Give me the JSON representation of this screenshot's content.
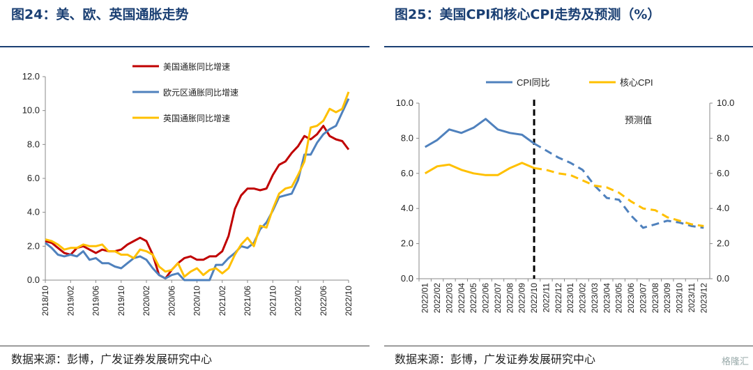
{
  "left": {
    "title": "图24：美、欧、英国通胀走势",
    "source": "数据来源：彭博，广发证券发展研究中心"
  },
  "right": {
    "title": "图25：美国CPI和核心CPI走势及预测（%）",
    "source": "数据来源：彭博，广发证券发展研究中心",
    "annotation": "预测值"
  },
  "watermark": "格隆汇",
  "colors": {
    "us": "#c00000",
    "eu": "#4f81bd",
    "uk": "#ffc000",
    "cpi": "#4f81bd",
    "core": "#ffc000",
    "title": "#1a3f73"
  },
  "chart_data": [
    {
      "type": "line",
      "title": "",
      "ylim": [
        0,
        12
      ],
      "yticks": [
        "0.0",
        "2.0",
        "4.0",
        "6.0",
        "8.0",
        "10.0",
        "12.0"
      ],
      "xticks": [
        "2018/10",
        "2019/02",
        "2019/06",
        "2019/10",
        "2020/02",
        "2020/06",
        "2020/10",
        "2021/02",
        "2021/06",
        "2021/10",
        "2022/02",
        "2022/06",
        "2022/10"
      ],
      "x": [
        "2018/10",
        "2018/11",
        "2018/12",
        "2019/01",
        "2019/02",
        "2019/03",
        "2019/04",
        "2019/05",
        "2019/06",
        "2019/07",
        "2019/08",
        "2019/09",
        "2019/10",
        "2019/11",
        "2019/12",
        "2020/01",
        "2020/02",
        "2020/03",
        "2020/04",
        "2020/05",
        "2020/06",
        "2020/07",
        "2020/08",
        "2020/09",
        "2020/10",
        "2020/11",
        "2020/12",
        "2021/01",
        "2021/02",
        "2021/03",
        "2021/04",
        "2021/05",
        "2021/06",
        "2021/07",
        "2021/08",
        "2021/09",
        "2021/10",
        "2021/11",
        "2021/12",
        "2022/01",
        "2022/02",
        "2022/03",
        "2022/04",
        "2022/05",
        "2022/06",
        "2022/07",
        "2022/08",
        "2022/09",
        "2022/10"
      ],
      "legend_position": "top-left",
      "series": [
        {
          "name": "美国通胀同比增速",
          "values": [
            2.3,
            2.2,
            1.9,
            1.6,
            1.5,
            1.9,
            2.0,
            1.8,
            1.6,
            1.8,
            1.7,
            1.7,
            1.8,
            2.1,
            2.3,
            2.5,
            2.3,
            1.5,
            0.3,
            0.1,
            0.6,
            1.0,
            1.3,
            1.4,
            1.2,
            1.2,
            1.4,
            1.4,
            1.7,
            2.6,
            4.2,
            5.0,
            5.4,
            5.4,
            5.3,
            5.4,
            6.2,
            6.8,
            7.0,
            7.5,
            7.9,
            8.5,
            8.3,
            8.6,
            9.1,
            8.5,
            8.3,
            8.2,
            7.7
          ]
        },
        {
          "name": "欧元区通胀同比增速",
          "values": [
            2.2,
            1.9,
            1.5,
            1.4,
            1.5,
            1.4,
            1.7,
            1.2,
            1.3,
            1.0,
            1.0,
            0.8,
            0.7,
            1.0,
            1.3,
            1.4,
            1.2,
            0.7,
            0.3,
            0.1,
            0.3,
            0.4,
            -0.2,
            -0.3,
            -0.3,
            -0.3,
            -0.3,
            0.9,
            0.9,
            1.3,
            1.6,
            2.0,
            1.9,
            2.2,
            3.0,
            3.4,
            4.1,
            4.9,
            5.0,
            5.1,
            5.9,
            7.4,
            7.4,
            8.1,
            8.6,
            8.9,
            9.1,
            9.9,
            10.7
          ]
        },
        {
          "name": "英国通胀同比增速",
          "values": [
            2.4,
            2.3,
            2.1,
            1.8,
            1.9,
            1.9,
            2.1,
            2.0,
            2.0,
            2.1,
            1.7,
            1.7,
            1.5,
            1.5,
            1.3,
            1.8,
            1.7,
            1.5,
            0.8,
            0.5,
            0.6,
            1.0,
            0.2,
            0.5,
            0.7,
            0.3,
            0.6,
            0.7,
            0.4,
            0.7,
            1.5,
            2.1,
            2.5,
            2.0,
            3.2,
            3.1,
            4.2,
            5.1,
            5.4,
            5.5,
            6.2,
            7.0,
            9.0,
            9.1,
            9.4,
            10.1,
            9.9,
            10.1,
            11.1
          ]
        }
      ]
    },
    {
      "type": "line",
      "title": "",
      "ylim": [
        0,
        10
      ],
      "yticks": [
        "0.0",
        "2.0",
        "4.0",
        "6.0",
        "8.0",
        "10.0"
      ],
      "x": [
        "2022/01",
        "2022/02",
        "2022/03",
        "2022/04",
        "2022/05",
        "2022/06",
        "2022/07",
        "2022/08",
        "2022/09",
        "2022/10",
        "2022/11",
        "2022/12",
        "2023/01",
        "2023/02",
        "2023/03",
        "2023/04",
        "2023/05",
        "2023/06",
        "2023/07",
        "2023/08",
        "2023/09",
        "2023/10",
        "2023/11",
        "2023/12"
      ],
      "forecast_start": "2022/11",
      "legend_position": "top",
      "series": [
        {
          "name": "CPI同比",
          "values": [
            7.5,
            7.9,
            8.5,
            8.3,
            8.6,
            9.1,
            8.5,
            8.3,
            8.2,
            7.7,
            7.3,
            6.9,
            6.6,
            6.2,
            5.3,
            4.6,
            4.5,
            3.6,
            2.9,
            3.1,
            3.3,
            3.2,
            3.0,
            2.9
          ]
        },
        {
          "name": "核心CPI",
          "values": [
            6.0,
            6.4,
            6.5,
            6.2,
            6.0,
            5.9,
            5.9,
            6.3,
            6.6,
            6.3,
            6.2,
            6.0,
            5.9,
            5.6,
            5.3,
            5.2,
            4.9,
            4.4,
            4.0,
            3.9,
            3.5,
            3.3,
            3.1,
            3.0
          ]
        }
      ]
    }
  ]
}
